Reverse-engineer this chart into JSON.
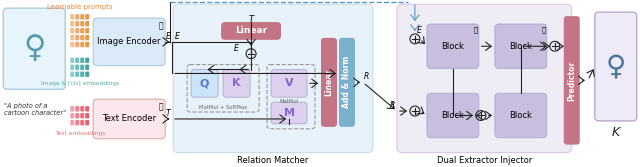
{
  "fig_width": 6.4,
  "fig_height": 1.67,
  "dpi": 100,
  "bg_color": "#ffffff",
  "colors": {
    "light_blue": "#daeaf8",
    "light_pink": "#fce8ec",
    "light_purple": "#e5e0f0",
    "pink_box": "#c47585",
    "blue_box": "#7ab0cc",
    "purple_block": "#c8bedd",
    "orange_text": "#e8883a",
    "teal_text": "#5ab0a0",
    "pink_text": "#e07878",
    "arrow": "#222222",
    "dashed_arrow": "#5599cc"
  },
  "labels": {
    "learnable_prompts": "Learnable prompts",
    "image_cls_emb": "Image & [cls] embeddings",
    "text_embeddings": "Text embeddings",
    "image_encoder": "Image Encoder",
    "text_encoder": "Text Encoder",
    "relation_matcher": "Relation Matcher",
    "dual_extractor": "Dual Extractor Injector",
    "linear": "Linear",
    "add_norm": "Add & Norm",
    "predictor": "Predictor",
    "matmul_softmax": "MatMul + SoftMax",
    "matmul": "MatMul",
    "quote": "\"A photo of a\ncartoon character\"",
    "K_out": "K",
    "block": "Block",
    "Q": "Q",
    "K": "K",
    "V": "V",
    "M": "M"
  },
  "prompt_colors_orange": [
    "#f5c08a",
    "#f0a870",
    "#eba050",
    "#e89840"
  ],
  "prompt_colors_teal": [
    "#88d0cc",
    "#70c0bc",
    "#58b0b0",
    "#48a4a4"
  ],
  "prompt_colors_pink": [
    "#f5a0a8",
    "#f08090",
    "#ec7080",
    "#e86070"
  ]
}
